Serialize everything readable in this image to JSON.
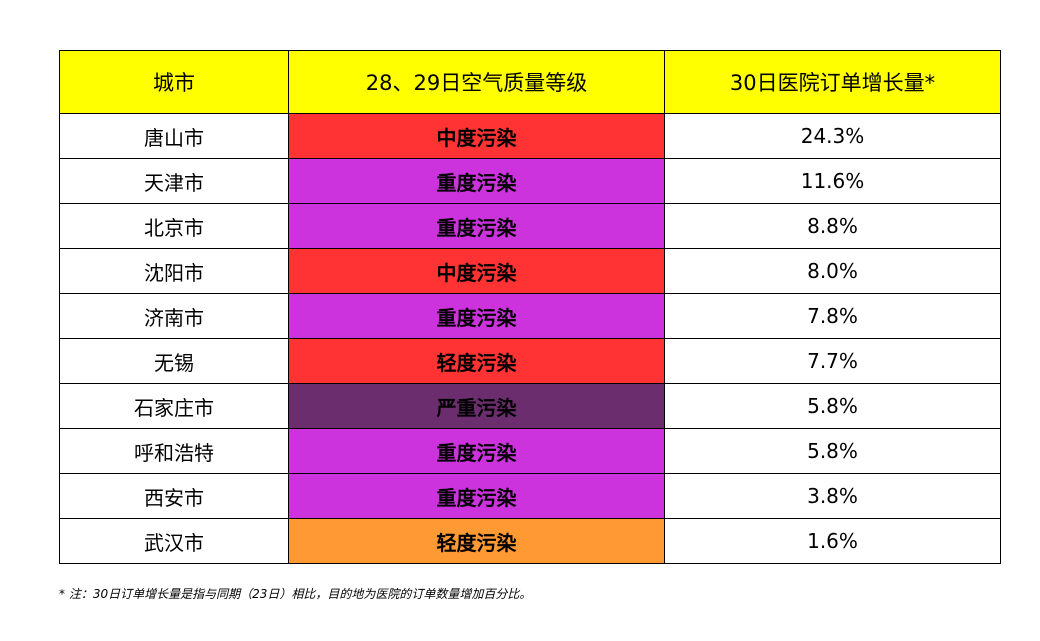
{
  "table": {
    "headers": [
      "城市",
      "28、29日空气质量等级",
      "30日医院订单增长量*"
    ],
    "rows": [
      {
        "city": "唐山市",
        "level": "中度污染",
        "level_color": "#ff3333",
        "growth": "24.3%"
      },
      {
        "city": "天津市",
        "level": "重度污染",
        "level_color": "#cc33dd",
        "growth": "11.6%"
      },
      {
        "city": "北京市",
        "level": "重度污染",
        "level_color": "#cc33dd",
        "growth": "8.8%"
      },
      {
        "city": "沈阳市",
        "level": "中度污染",
        "level_color": "#ff3333",
        "growth": "8.0%"
      },
      {
        "city": "济南市",
        "level": "重度污染",
        "level_color": "#cc33dd",
        "growth": "7.8%"
      },
      {
        "city": "无锡",
        "level": "轻度污染",
        "level_color": "#ff3333",
        "growth": "7.7%"
      },
      {
        "city": "石家庄市",
        "level": "严重污染",
        "level_color": "#6b2d6e",
        "growth": "5.8%"
      },
      {
        "city": "呼和浩特",
        "level": "重度污染",
        "level_color": "#cc33dd",
        "growth": "5.8%"
      },
      {
        "city": "西安市",
        "level": "重度污染",
        "level_color": "#cc33dd",
        "growth": "3.8%"
      },
      {
        "city": "武汉市",
        "level": "轻度污染",
        "level_color": "#ff9933",
        "growth": "1.6%"
      }
    ]
  },
  "colors": {
    "header_bg": "#ffff00"
  },
  "footnote": "* 注：30日订单增长量是指与同期（23日）相比，目的地为医院的订单数量增加百分比。"
}
